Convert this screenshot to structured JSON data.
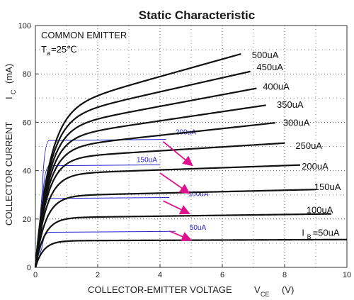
{
  "chart_data": {
    "type": "line",
    "title": "Static Characteristic",
    "condition_lines": [
      "COMMON EMITTER",
      "T",
      "a",
      "=25℃"
    ],
    "xlabel_main": "COLLECTOR-EMITTER VOLTAGE",
    "xlabel_symbol": "V",
    "xlabel_sub": "CE",
    "xlabel_unit": "(V)",
    "ylabel_main": "COLLECTOR CURRENT",
    "ylabel_symbol": "I",
    "ylabel_sub": "C",
    "ylabel_unit": "(mA)",
    "xlim": [
      0,
      10
    ],
    "ylim": [
      0,
      100
    ],
    "x_ticks": [
      "0",
      "2",
      "4",
      "6",
      "8",
      "10"
    ],
    "y_ticks": [
      "0",
      "20",
      "40",
      "60",
      "80",
      "100"
    ],
    "grid": "dotted",
    "colors": {
      "curve": "#111111",
      "overlay": "#2222cc",
      "arrow": "#e0118c"
    },
    "series": [
      {
        "name": "IB=50uA",
        "sat": 11,
        "slope": 0.05,
        "xmax": 10.0
      },
      {
        "name": "100uA",
        "sat": 20.5,
        "slope": 0.17,
        "xmax": 9.5
      },
      {
        "name": "150uA",
        "sat": 29.5,
        "slope": 0.3,
        "xmax": 9.0
      },
      {
        "name": "200uA",
        "sat": 38.5,
        "slope": 0.45,
        "xmax": 8.5
      },
      {
        "name": "250uA",
        "sat": 45,
        "slope": 0.8,
        "xmax": 8.0
      },
      {
        "name": "300uA",
        "sat": 49,
        "slope": 1.4,
        "xmax": 7.7
      },
      {
        "name": "350uA",
        "sat": 53,
        "slope": 1.9,
        "xmax": 7.4
      },
      {
        "name": "400uA",
        "sat": 57,
        "slope": 2.4,
        "xmax": 7.1
      },
      {
        "name": "450uA",
        "sat": 61,
        "slope": 2.9,
        "xmax": 6.9
      },
      {
        "name": "500uA",
        "sat": 64.5,
        "slope": 3.6,
        "xmax": 6.6
      }
    ],
    "curve_labels": [
      {
        "text": "500uA",
        "x": 6.95,
        "y": 86.5
      },
      {
        "text": "450uA",
        "x": 7.1,
        "y": 81.5
      },
      {
        "text": "400uA",
        "x": 7.3,
        "y": 73.5
      },
      {
        "text": "350uA",
        "x": 7.75,
        "y": 66
      },
      {
        "text": "300uA",
        "x": 7.95,
        "y": 58.5
      },
      {
        "text": "250uA",
        "x": 8.35,
        "y": 49
      },
      {
        "text": "200uA",
        "x": 8.55,
        "y": 40.5
      },
      {
        "text": "150uA",
        "x": 8.95,
        "y": 32
      },
      {
        "text": "100uA",
        "x": 8.7,
        "y": 22.5
      },
      {
        "text": "I",
        "x": 8.55,
        "y": 13
      },
      {
        "text": "B",
        "x": 8.72,
        "y": 11.8
      },
      {
        "text": "=50uA",
        "x": 8.9,
        "y": 13
      }
    ],
    "overlay_curves": [
      {
        "label": "200uA",
        "sat": 52.5,
        "xmax": 4.2,
        "label_x": 4.5,
        "label_y": 55
      },
      {
        "label": "150uA",
        "sat": 42,
        "xmax": 4.0,
        "label_x": 3.25,
        "label_y": 43.5
      },
      {
        "label": "100uA",
        "sat": 28.5,
        "xmax": 4.3,
        "label_x": 4.9,
        "label_y": 29.5
      },
      {
        "label": "50uA",
        "sat": 14.5,
        "xmax": 4.5,
        "label_x": 4.95,
        "label_y": 15.5
      }
    ],
    "arrows": [
      {
        "x1": 4.1,
        "y1": 52,
        "x2": 5.0,
        "y2": 42.5
      },
      {
        "x1": 4.0,
        "y1": 39,
        "x2": 4.9,
        "y2": 31
      },
      {
        "x1": 4.1,
        "y1": 27.5,
        "x2": 4.9,
        "y2": 22.5
      },
      {
        "x1": 4.3,
        "y1": 15,
        "x2": 4.95,
        "y2": 11.5
      }
    ]
  }
}
